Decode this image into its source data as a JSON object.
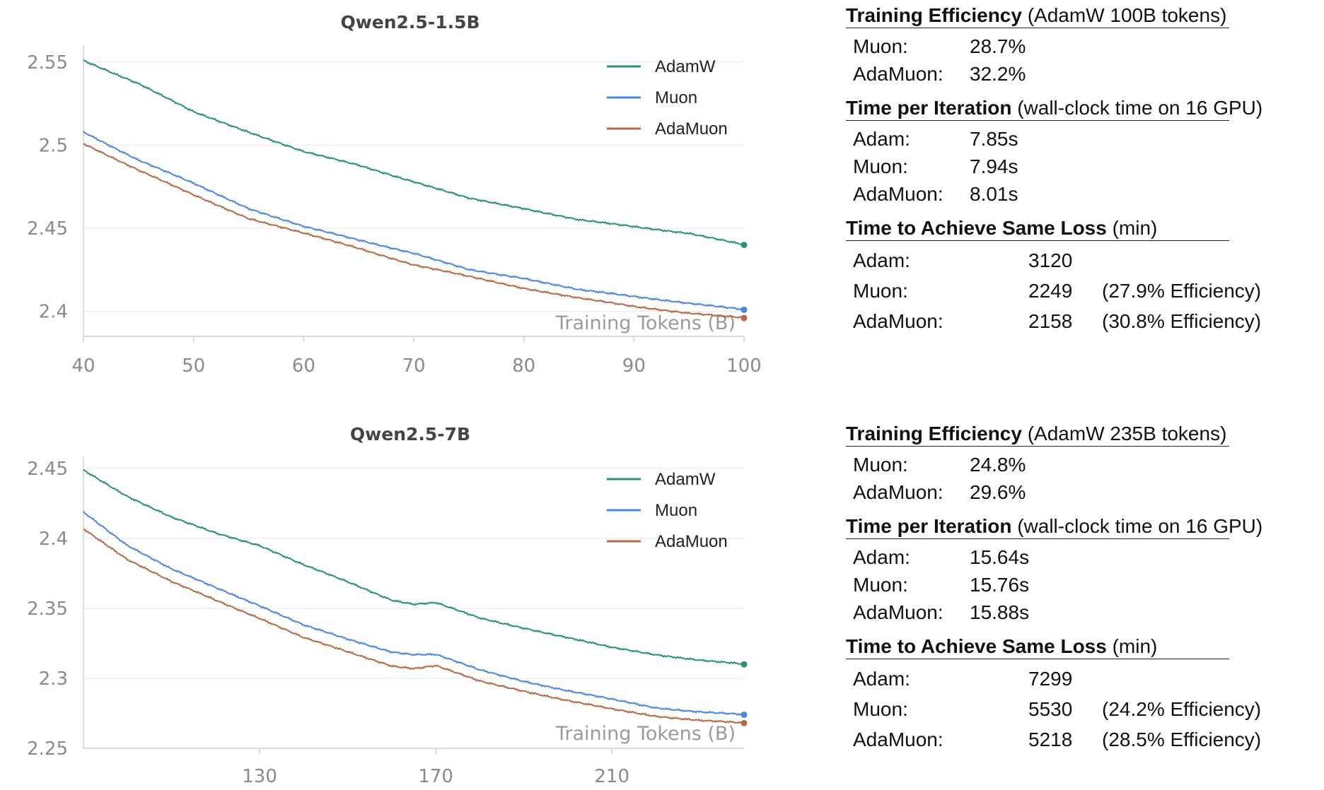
{
  "chart_data": [
    {
      "type": "line",
      "title": "Qwen2.5-1.5B",
      "xlabel": "Training Tokens (B)",
      "ylabel": "",
      "xlim": [
        40,
        100
      ],
      "ylim": [
        2.385,
        2.555
      ],
      "xticks": [
        40,
        50,
        60,
        70,
        80,
        90,
        100
      ],
      "yticks": [
        2.4,
        2.45,
        2.5,
        2.55
      ],
      "ytick_labels": [
        "2.4",
        "2.45",
        "2.5",
        "2.55"
      ],
      "grid": true,
      "legend": "top-right",
      "x": [
        40,
        45,
        50,
        55,
        60,
        65,
        70,
        75,
        80,
        85,
        90,
        95,
        100
      ],
      "series": [
        {
          "name": "AdamW",
          "color": "#2a9078",
          "values": [
            2.551,
            2.537,
            2.52,
            2.508,
            2.496,
            2.488,
            2.478,
            2.468,
            2.462,
            2.455,
            2.451,
            2.447,
            2.44
          ]
        },
        {
          "name": "Muon",
          "color": "#4b87e0",
          "values": [
            2.508,
            2.491,
            2.477,
            2.462,
            2.451,
            2.443,
            2.435,
            2.425,
            2.42,
            2.413,
            2.409,
            2.405,
            2.401
          ]
        },
        {
          "name": "AdaMuon",
          "color": "#b66a48",
          "values": [
            2.501,
            2.485,
            2.47,
            2.456,
            2.447,
            2.438,
            2.428,
            2.421,
            2.414,
            2.408,
            2.403,
            2.399,
            2.396
          ]
        }
      ]
    },
    {
      "type": "line",
      "title": "Qwen2.5-7B",
      "xlabel": "Training Tokens (B)",
      "ylabel": "",
      "xlim": [
        90,
        240
      ],
      "ylim": [
        2.25,
        2.452
      ],
      "xticks": [
        130,
        170,
        210
      ],
      "yticks": [
        2.25,
        2.3,
        2.35,
        2.4,
        2.45
      ],
      "ytick_labels": [
        "2.25",
        "2.3",
        "2.35",
        "2.4",
        "2.45"
      ],
      "grid": true,
      "legend": "top-right",
      "x": [
        90,
        100,
        110,
        120,
        130,
        140,
        150,
        160,
        165,
        170,
        180,
        190,
        200,
        210,
        220,
        230,
        240
      ],
      "series": [
        {
          "name": "AdamW",
          "color": "#2a9078",
          "values": [
            2.449,
            2.43,
            2.415,
            2.404,
            2.395,
            2.381,
            2.369,
            2.356,
            2.353,
            2.354,
            2.343,
            2.336,
            2.329,
            2.322,
            2.317,
            2.313,
            2.31
          ]
        },
        {
          "name": "Muon",
          "color": "#4b87e0",
          "values": [
            2.419,
            2.395,
            2.378,
            2.365,
            2.352,
            2.338,
            2.328,
            2.319,
            2.317,
            2.317,
            2.306,
            2.298,
            2.291,
            2.285,
            2.279,
            2.276,
            2.274
          ]
        },
        {
          "name": "AdaMuon",
          "color": "#b66a48",
          "values": [
            2.407,
            2.385,
            2.369,
            2.356,
            2.343,
            2.329,
            2.319,
            2.309,
            2.307,
            2.309,
            2.298,
            2.291,
            2.284,
            2.278,
            2.273,
            2.27,
            2.268
          ]
        }
      ]
    }
  ],
  "panels": [
    {
      "eff_title": "Training Efficiency",
      "eff_sub": "(AdamW 100B tokens)",
      "eff_rows": [
        {
          "label": "Muon:",
          "value": "28.7%"
        },
        {
          "label": "AdaMuon:",
          "value": "32.2%"
        }
      ],
      "iter_title": "Time per Iteration",
      "iter_sub": "(wall-clock time on 16 GPU)",
      "iter_rows": [
        {
          "label": "Adam:",
          "value": "7.85s"
        },
        {
          "label": "Muon:",
          "value": "7.94s"
        },
        {
          "label": "AdaMuon:",
          "value": "8.01s"
        }
      ],
      "loss_title": "Time to Achieve Same Loss",
      "loss_sub": "(min)",
      "loss_rows": [
        {
          "label": "Adam:",
          "value": "3120",
          "eff": ""
        },
        {
          "label": "Muon:",
          "value": "2249",
          "eff": "(27.9% Efficiency)"
        },
        {
          "label": "AdaMuon:",
          "value": "2158",
          "eff": "(30.8% Efficiency)"
        }
      ]
    },
    {
      "eff_title": "Training Efficiency",
      "eff_sub": "(AdamW 235B tokens)",
      "eff_rows": [
        {
          "label": "Muon:",
          "value": "24.8%"
        },
        {
          "label": "AdaMuon:",
          "value": "29.6%"
        }
      ],
      "iter_title": "Time per Iteration",
      "iter_sub": "(wall-clock time on 16 GPU)",
      "iter_rows": [
        {
          "label": "Adam:",
          "value": "15.64s"
        },
        {
          "label": "Muon:",
          "value": "15.76s"
        },
        {
          "label": "AdaMuon:",
          "value": "15.88s"
        }
      ],
      "loss_title": "Time to Achieve Same Loss",
      "loss_sub": "(min)",
      "loss_rows": [
        {
          "label": "Adam:",
          "value": "7299",
          "eff": ""
        },
        {
          "label": "Muon:",
          "value": "5530",
          "eff": "(24.2% Efficiency)"
        },
        {
          "label": "AdaMuon:",
          "value": "5218",
          "eff": "(28.5% Efficiency)"
        }
      ]
    }
  ]
}
